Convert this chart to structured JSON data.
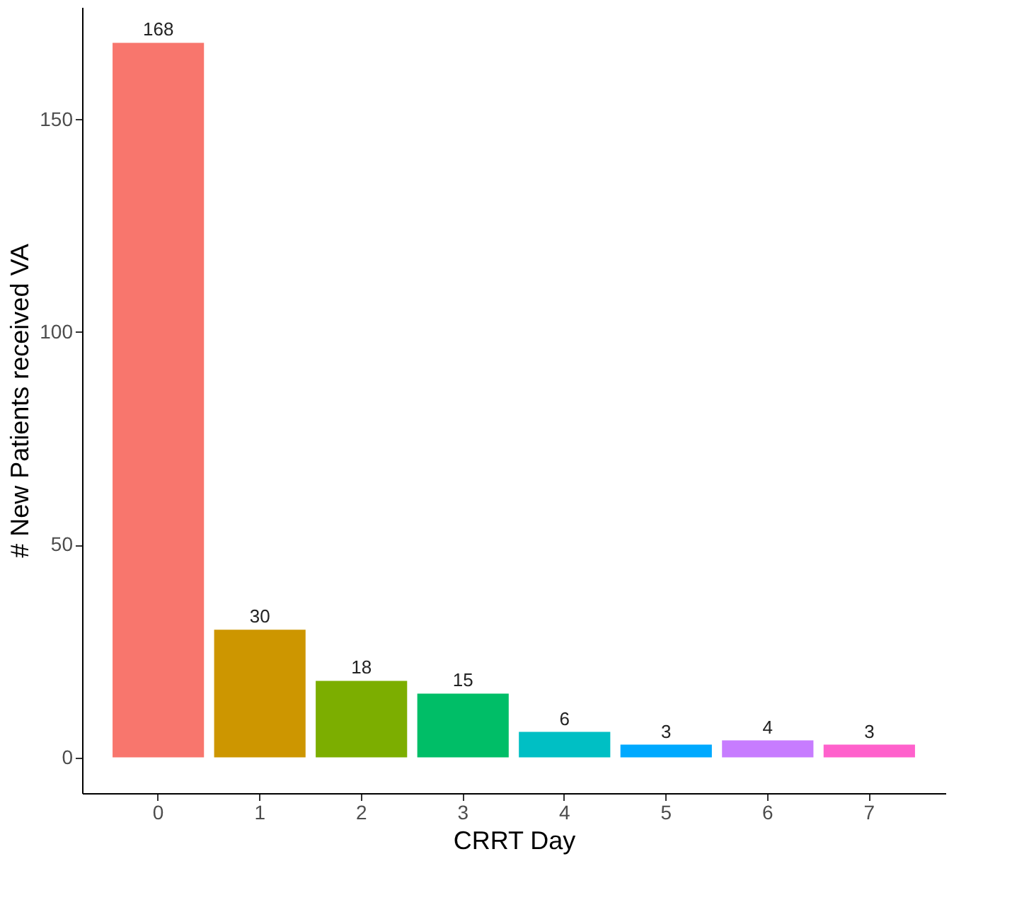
{
  "chart_data": {
    "type": "bar",
    "xlabel": "CRRT Day",
    "ylabel": "# New Patients received VA",
    "categories": [
      "0",
      "1",
      "2",
      "3",
      "4",
      "5",
      "6",
      "7"
    ],
    "values": [
      168,
      30,
      18,
      15,
      6,
      3,
      4,
      3
    ],
    "colors": [
      "#f8766d",
      "#cd9600",
      "#7cae00",
      "#00be67",
      "#00bfc4",
      "#00a9ff",
      "#c77cff",
      "#ff61cc"
    ],
    "ylim": [
      -8.4,
      176.4
    ],
    "yticks": [
      0,
      50,
      100,
      150
    ],
    "grid": false,
    "data_labels": true
  }
}
